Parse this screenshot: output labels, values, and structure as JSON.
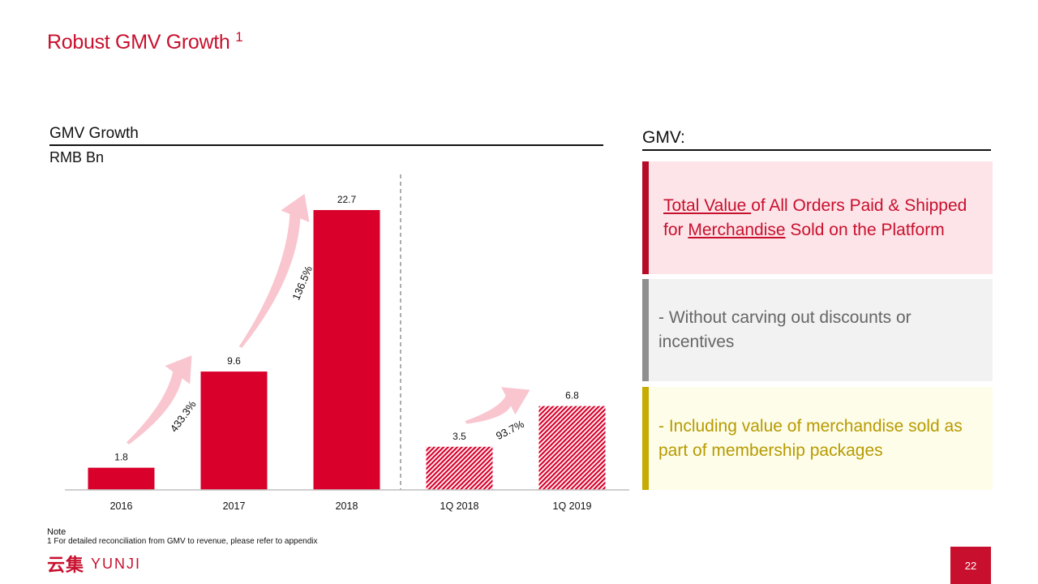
{
  "slide": {
    "title": "Robust GMV Growth",
    "title_footnote_marker": "1",
    "page_number": "22"
  },
  "chart_header": {
    "title": "GMV Growth",
    "unit": "RMB Bn"
  },
  "chart_data": {
    "type": "bar",
    "categories": [
      "2016",
      "2017",
      "2018",
      "1Q 2018",
      "1Q 2019"
    ],
    "values": [
      1.8,
      9.6,
      22.7,
      3.5,
      6.8
    ],
    "data_labels": [
      "1.8",
      "9.6",
      "22.7",
      "3.5",
      "6.8"
    ],
    "bar_styles": [
      "solid",
      "solid",
      "solid",
      "hatched",
      "hatched"
    ],
    "title": "GMV Growth",
    "ylabel": "RMB Bn",
    "ylim": [
      0,
      25
    ],
    "grid": false,
    "separator_after_category": "2018",
    "growth_annotations": [
      {
        "from": "2016",
        "to": "2017",
        "label": "433.3%"
      },
      {
        "from": "2017",
        "to": "2018",
        "label": "136.5%"
      },
      {
        "from": "1Q 2018",
        "to": "1Q 2019",
        "label": "93.7%"
      }
    ],
    "colors": {
      "bar": "#d9002b",
      "arrow": "#f9c6d0",
      "separator": "#999999",
      "axis": "#bfbfbf"
    }
  },
  "gmv_panel": {
    "title": "GMV:",
    "definition": {
      "part1_underlined": "Total Value ",
      "part2": "of All Orders Paid & Shipped for ",
      "part3_underlined": "Merchandise",
      "part4": " Sold on the Platform"
    },
    "exclusion": "- Without carving out discounts or incentives",
    "inclusion": "- Including value of merchandise sold as part of membership packages"
  },
  "notes": {
    "label": "Note",
    "text": "1  For detailed reconciliation from GMV to revenue, please refer to appendix"
  },
  "logo": {
    "chinese": "云集",
    "english": "YUNJI"
  },
  "colors": {
    "brand_red": "#c8102e",
    "grey": "#8f8f8f",
    "gold": "#c7ab00"
  }
}
